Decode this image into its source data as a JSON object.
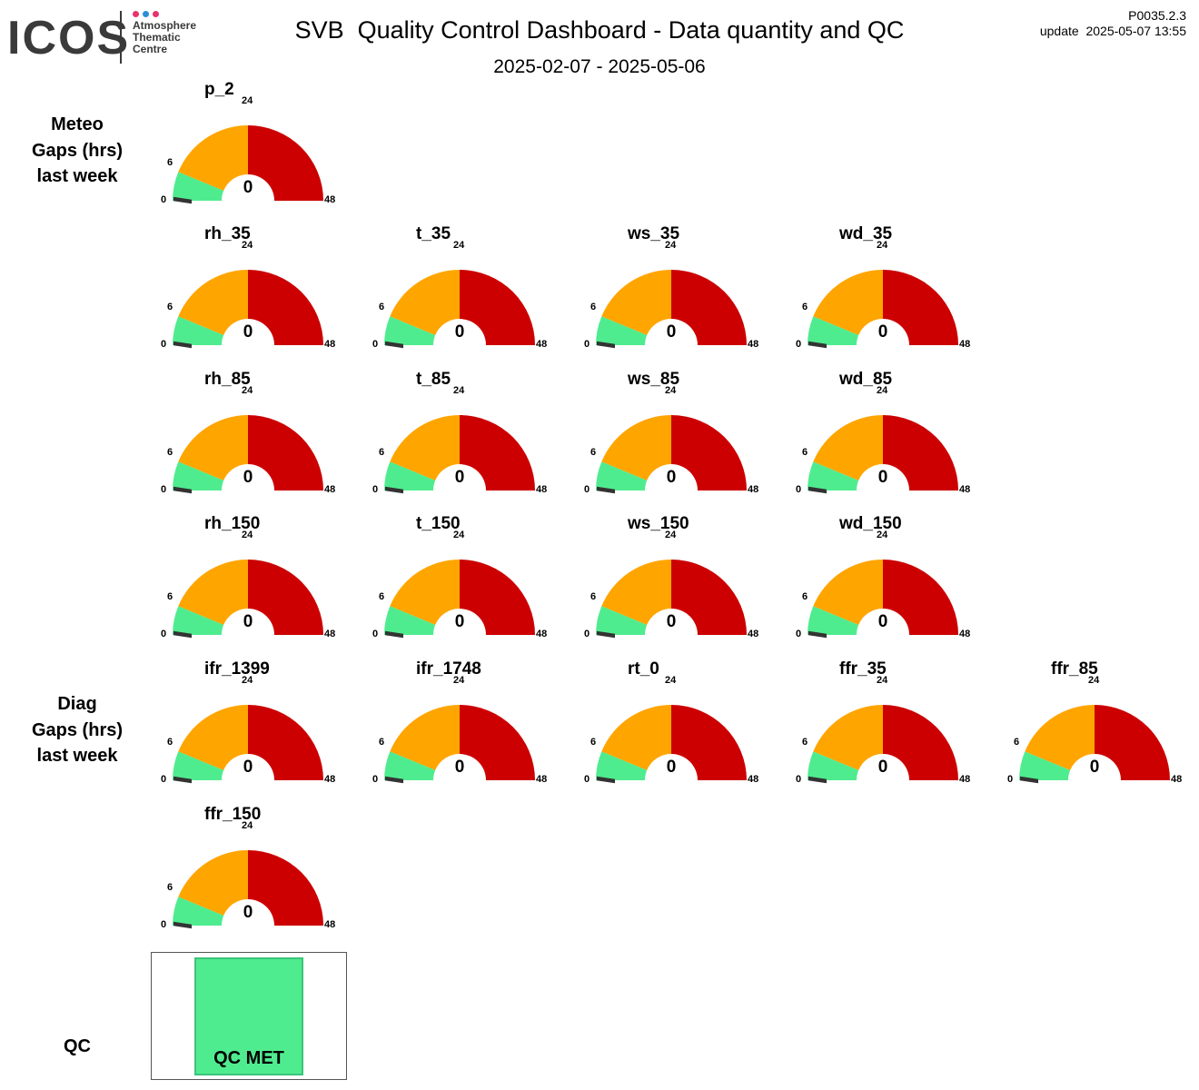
{
  "header": {
    "logo_text": "ICOS",
    "logo_lines": [
      "Atmosphere",
      "Thematic",
      "Centre"
    ],
    "logo_dot_colors": [
      "#e8336d",
      "#2a8fd8",
      "#e8336d"
    ],
    "title": "SVB  Quality Control Dashboard - Data quantity and QC",
    "date_range": "2025-02-07 - 2025-05-06",
    "version": "P0035.2.3",
    "update": "update  2025-05-07 13:55"
  },
  "sections": {
    "meteo": [
      "Meteo",
      "Gaps (hrs)",
      "last week"
    ],
    "diag": [
      "Diag",
      "Gaps (hrs)",
      "last week"
    ],
    "qc": "QC"
  },
  "gauge_scale": {
    "min": 0,
    "green_max": 6,
    "orange_max": 24,
    "max": 48
  },
  "gauge_ticks": [
    "0",
    "6",
    "24",
    "48"
  ],
  "colors": {
    "green": "#4fec8f",
    "orange": "#ffa500",
    "red": "#cc0000",
    "needle": "#333333",
    "qc_met": "#4fec8f"
  },
  "gauges": [
    {
      "name": "p_2",
      "value": 0
    },
    {
      "name": "rh_35",
      "value": 0
    },
    {
      "name": "t_35",
      "value": 0
    },
    {
      "name": "ws_35",
      "value": 0
    },
    {
      "name": "wd_35",
      "value": 0
    },
    {
      "name": "rh_85",
      "value": 0
    },
    {
      "name": "t_85",
      "value": 0
    },
    {
      "name": "ws_85",
      "value": 0
    },
    {
      "name": "wd_85",
      "value": 0
    },
    {
      "name": "rh_150",
      "value": 0
    },
    {
      "name": "t_150",
      "value": 0
    },
    {
      "name": "ws_150",
      "value": 0
    },
    {
      "name": "wd_150",
      "value": 0
    },
    {
      "name": "ifr_1399",
      "value": 0
    },
    {
      "name": "ifr_1748",
      "value": 0
    },
    {
      "name": "rt_0",
      "value": 0
    },
    {
      "name": "ffr_35",
      "value": 0
    },
    {
      "name": "ffr_85",
      "value": 0
    },
    {
      "name": "ffr_150",
      "value": 0
    }
  ],
  "qc": {
    "status": "QC MET"
  }
}
